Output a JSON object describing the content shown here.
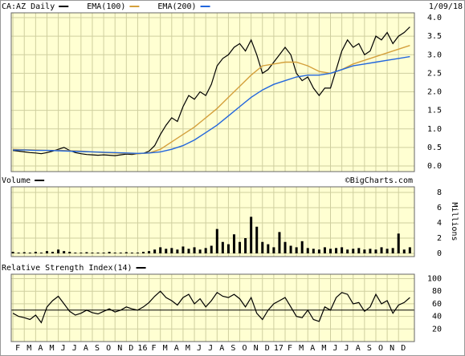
{
  "chart_data": [
    {
      "type": "line",
      "date": "1/09/18",
      "ylim": [
        0,
        4
      ],
      "yticks": [
        {
          "value": 0,
          "label": "0.0"
        },
        0.5,
        {
          "value": 1,
          "label": "1.0"
        },
        1.5,
        {
          "value": 2,
          "label": "2.0"
        },
        2.5,
        {
          "value": 3,
          "label": "3.0"
        },
        3.5,
        {
          "value": 4,
          "label": "4.0"
        }
      ],
      "grid": true,
      "series": [
        {
          "name": "CA:AZ Daily",
          "color": "#000000",
          "x": [
            1,
            1.5,
            2,
            2.5,
            3,
            3.5,
            4,
            4.5,
            5,
            5.5,
            6,
            6.5,
            7,
            7.5,
            8,
            8.5,
            9,
            9.5,
            10,
            10.5,
            11,
            11.5,
            12,
            12.5,
            13,
            13.5,
            14,
            14.5,
            15,
            15.5,
            16,
            16.5,
            17,
            17.5,
            18,
            18.5,
            19,
            19.5,
            20,
            20.5,
            21,
            21.5,
            22,
            22.5,
            23,
            23.5,
            24,
            24.5,
            25,
            25.5,
            26,
            26.5,
            27,
            27.5,
            28,
            28.5,
            29,
            29.5,
            30,
            30.5,
            31,
            31.5,
            32,
            32.5,
            33,
            33.5,
            34,
            34.5,
            35,
            35.5,
            36
          ],
          "values": [
            0.42,
            0.4,
            0.38,
            0.36,
            0.35,
            0.33,
            0.36,
            0.4,
            0.45,
            0.5,
            0.42,
            0.36,
            0.33,
            0.31,
            0.3,
            0.29,
            0.3,
            0.29,
            0.28,
            0.3,
            0.32,
            0.31,
            0.33,
            0.34,
            0.4,
            0.55,
            0.85,
            1.1,
            1.3,
            1.2,
            1.6,
            1.9,
            1.8,
            2.0,
            1.9,
            2.2,
            2.7,
            2.9,
            3.0,
            3.2,
            3.3,
            3.1,
            3.4,
            3.0,
            2.5,
            2.6,
            2.8,
            3.0,
            3.2,
            3.0,
            2.5,
            2.3,
            2.4,
            2.1,
            1.9,
            2.1,
            2.1,
            2.6,
            3.1,
            3.4,
            3.2,
            3.3,
            3.0,
            3.1,
            3.5,
            3.4,
            3.6,
            3.3,
            3.5,
            3.6,
            3.75
          ]
        },
        {
          "name": "EMA(100)",
          "color": "#d4a03c",
          "x": [
            1,
            2,
            3,
            4,
            5,
            6,
            7,
            8,
            9,
            10,
            11,
            12,
            13,
            14,
            15,
            16,
            17,
            18,
            19,
            20,
            21,
            22,
            23,
            24,
            25,
            26,
            27,
            28,
            29,
            30,
            31,
            32,
            33,
            34,
            35,
            36
          ],
          "values": [
            0.45,
            0.44,
            0.43,
            0.42,
            0.42,
            0.41,
            0.4,
            0.38,
            0.36,
            0.35,
            0.34,
            0.33,
            0.35,
            0.45,
            0.65,
            0.85,
            1.05,
            1.3,
            1.55,
            1.85,
            2.15,
            2.45,
            2.7,
            2.75,
            2.8,
            2.8,
            2.7,
            2.55,
            2.5,
            2.6,
            2.75,
            2.85,
            2.95,
            3.05,
            3.15,
            3.25
          ]
        },
        {
          "name": "EMA(200)",
          "color": "#2266dd",
          "x": [
            1,
            2,
            3,
            4,
            5,
            6,
            7,
            8,
            9,
            10,
            11,
            12,
            13,
            14,
            15,
            16,
            17,
            18,
            19,
            20,
            21,
            22,
            23,
            24,
            25,
            26,
            27,
            28,
            29,
            30,
            31,
            32,
            33,
            34,
            35,
            36
          ],
          "values": [
            0.43,
            0.43,
            0.42,
            0.42,
            0.41,
            0.4,
            0.39,
            0.38,
            0.37,
            0.36,
            0.35,
            0.34,
            0.35,
            0.38,
            0.45,
            0.55,
            0.7,
            0.9,
            1.1,
            1.35,
            1.6,
            1.85,
            2.05,
            2.2,
            2.3,
            2.4,
            2.45,
            2.45,
            2.5,
            2.6,
            2.7,
            2.75,
            2.8,
            2.85,
            2.9,
            2.95
          ]
        }
      ]
    },
    {
      "type": "bar",
      "credit": "©BigCharts.com",
      "y_label": "Millions",
      "ylim": [
        0,
        8
      ],
      "yticks": [
        0,
        2,
        4,
        6,
        8
      ],
      "grid": true,
      "series": [
        {
          "name": "Volume",
          "color": "#000000",
          "x": [
            1,
            1.5,
            2,
            2.5,
            3,
            3.5,
            4,
            4.5,
            5,
            5.5,
            6,
            6.5,
            7,
            7.5,
            8,
            8.5,
            9,
            9.5,
            10,
            10.5,
            11,
            11.5,
            12,
            12.5,
            13,
            13.5,
            14,
            14.5,
            15,
            15.5,
            16,
            16.5,
            17,
            17.5,
            18,
            18.5,
            19,
            19.5,
            20,
            20.5,
            21,
            21.5,
            22,
            22.5,
            23,
            23.5,
            24,
            24.5,
            25,
            25.5,
            26,
            26.5,
            27,
            27.5,
            28,
            28.5,
            29,
            29.5,
            30,
            30.5,
            31,
            31.5,
            32,
            32.5,
            33,
            33.5,
            34,
            34.5,
            35,
            35.5,
            36
          ],
          "values": [
            0.2,
            0.1,
            0.15,
            0.1,
            0.2,
            0.1,
            0.3,
            0.2,
            0.5,
            0.3,
            0.2,
            0.1,
            0.1,
            0.15,
            0.1,
            0.1,
            0.1,
            0.2,
            0.1,
            0.1,
            0.15,
            0.1,
            0.1,
            0.2,
            0.3,
            0.5,
            0.8,
            0.6,
            0.7,
            0.5,
            0.9,
            0.6,
            0.8,
            0.5,
            0.7,
            1.0,
            3.2,
            1.5,
            1.2,
            2.5,
            1.5,
            2.0,
            4.8,
            3.5,
            1.5,
            1.2,
            0.8,
            2.8,
            1.5,
            1.0,
            0.8,
            1.6,
            0.7,
            0.6,
            0.5,
            0.8,
            0.6,
            0.7,
            0.8,
            0.5,
            0.6,
            0.7,
            0.5,
            0.6,
            0.5,
            0.8,
            0.6,
            0.7,
            2.6,
            0.5,
            0.8
          ]
        }
      ]
    },
    {
      "type": "line",
      "ylim": [
        0,
        100
      ],
      "yticks": [
        20,
        40,
        60,
        80,
        100
      ],
      "grid": true,
      "reference_line": 50,
      "xlim": [
        0.85,
        36.4
      ],
      "xticks": [
        {
          "value": 1,
          "label": "F"
        },
        {
          "value": 2,
          "label": "M"
        },
        {
          "value": 3,
          "label": "A"
        },
        {
          "value": 4,
          "label": "M"
        },
        {
          "value": 5,
          "label": "J"
        },
        {
          "value": 6,
          "label": "J"
        },
        {
          "value": 7,
          "label": "A"
        },
        {
          "value": 8,
          "label": "S"
        },
        {
          "value": 9,
          "label": "O"
        },
        {
          "value": 10,
          "label": "N"
        },
        {
          "value": 11,
          "label": "D"
        },
        {
          "value": 12,
          "label": "16"
        },
        {
          "value": 13,
          "label": "F"
        },
        {
          "value": 14,
          "label": "M"
        },
        {
          "value": 15,
          "label": "A"
        },
        {
          "value": 16,
          "label": "M"
        },
        {
          "value": 17,
          "label": "J"
        },
        {
          "value": 18,
          "label": "J"
        },
        {
          "value": 19,
          "label": "A"
        },
        {
          "value": 20,
          "label": "S"
        },
        {
          "value": 21,
          "label": "O"
        },
        {
          "value": 22,
          "label": "N"
        },
        {
          "value": 23,
          "label": "D"
        },
        {
          "value": 24,
          "label": "17"
        },
        {
          "value": 25,
          "label": "F"
        },
        {
          "value": 26,
          "label": "M"
        },
        {
          "value": 27,
          "label": "A"
        },
        {
          "value": 28,
          "label": "M"
        },
        {
          "value": 29,
          "label": "J"
        },
        {
          "value": 30,
          "label": "J"
        },
        {
          "value": 31,
          "label": "A"
        },
        {
          "value": 32,
          "label": "S"
        },
        {
          "value": 33,
          "label": "O"
        },
        {
          "value": 34,
          "label": "N"
        },
        {
          "value": 35,
          "label": "D"
        }
      ],
      "series": [
        {
          "name": "Relative Strength Index(14)",
          "color": "#000000",
          "x": [
            1,
            1.5,
            2,
            2.5,
            3,
            3.5,
            4,
            4.5,
            5,
            5.5,
            6,
            6.5,
            7,
            7.5,
            8,
            8.5,
            9,
            9.5,
            10,
            10.5,
            11,
            11.5,
            12,
            12.5,
            13,
            13.5,
            14,
            14.5,
            15,
            15.5,
            16,
            16.5,
            17,
            17.5,
            18,
            18.5,
            19,
            19.5,
            20,
            20.5,
            21,
            21.5,
            22,
            22.5,
            23,
            23.5,
            24,
            24.5,
            25,
            25.5,
            26,
            26.5,
            27,
            27.5,
            28,
            28.5,
            29,
            29.5,
            30,
            30.5,
            31,
            31.5,
            32,
            32.5,
            33,
            33.5,
            34,
            34.5,
            35,
            35.5,
            36
          ],
          "values": [
            45,
            40,
            38,
            35,
            42,
            30,
            55,
            65,
            72,
            60,
            48,
            42,
            45,
            50,
            46,
            44,
            48,
            52,
            47,
            50,
            55,
            52,
            50,
            55,
            62,
            72,
            80,
            70,
            65,
            58,
            70,
            75,
            60,
            68,
            55,
            65,
            78,
            72,
            70,
            75,
            68,
            55,
            70,
            45,
            35,
            50,
            60,
            65,
            70,
            55,
            40,
            38,
            50,
            35,
            32,
            55,
            50,
            70,
            78,
            75,
            60,
            62,
            48,
            55,
            75,
            60,
            65,
            45,
            58,
            62,
            70
          ]
        }
      ]
    }
  ]
}
